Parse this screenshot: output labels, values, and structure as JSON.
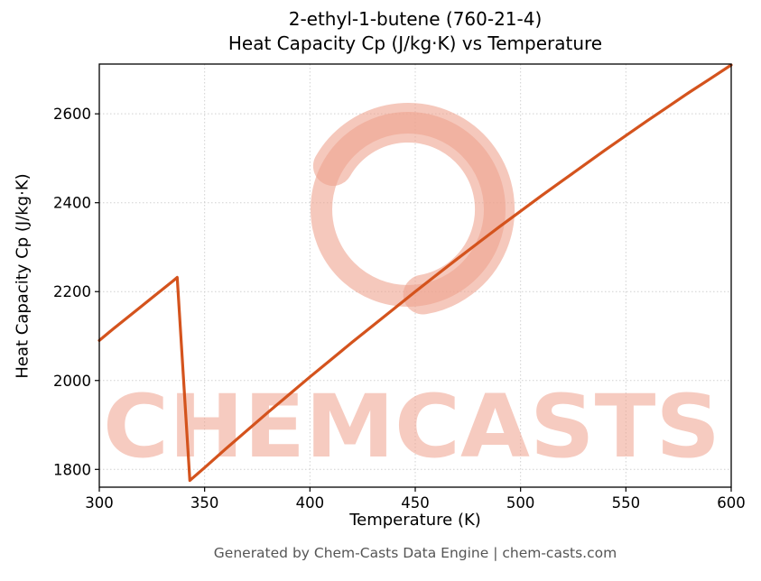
{
  "footer": "Generated by Chem-Casts Data Engine | chem-casts.com",
  "watermark": "CHEMCASTS",
  "colors": {
    "line": "#d4531d",
    "grid": "#d0d0d0",
    "axis": "#000000",
    "tick_label": "#000000",
    "watermark_ring": "#efa38f",
    "watermark_text": "#f0a28e",
    "footer_text": "#555555"
  },
  "chart_data": {
    "type": "line",
    "title_line1": "2-ethyl-1-butene (760-21-4)",
    "title_line2": "Heat Capacity Cp (J/kg·K) vs Temperature",
    "title": "2-ethyl-1-butene (760-21-4) — Heat Capacity Cp (J/kg·K) vs Temperature",
    "xlabel": "Temperature (K)",
    "ylabel": "Heat Capacity Cp (J/kg·K)",
    "xlim": [
      300,
      600
    ],
    "ylim": [
      1760,
      2712
    ],
    "x_ticks": [
      300,
      350,
      400,
      450,
      500,
      550,
      600
    ],
    "y_ticks": [
      1800,
      2000,
      2200,
      2400,
      2600
    ],
    "grid": true,
    "legend": false,
    "series": [
      {
        "name": "Heat Capacity Cp",
        "points": [
          [
            300,
            2090
          ],
          [
            305,
            2110
          ],
          [
            310,
            2129
          ],
          [
            315,
            2148
          ],
          [
            320,
            2167
          ],
          [
            325,
            2186
          ],
          [
            330,
            2205
          ],
          [
            335,
            2224
          ],
          [
            337,
            2232
          ],
          [
            343,
            1775
          ],
          [
            350,
            1804
          ],
          [
            360,
            1846
          ],
          [
            370,
            1887
          ],
          [
            380,
            1928
          ],
          [
            390,
            1968
          ],
          [
            400,
            2008
          ],
          [
            410,
            2047
          ],
          [
            420,
            2086
          ],
          [
            430,
            2124
          ],
          [
            440,
            2162
          ],
          [
            450,
            2200
          ],
          [
            460,
            2237
          ],
          [
            470,
            2274
          ],
          [
            480,
            2310
          ],
          [
            490,
            2346
          ],
          [
            500,
            2381
          ],
          [
            510,
            2416
          ],
          [
            520,
            2450
          ],
          [
            530,
            2484
          ],
          [
            540,
            2518
          ],
          [
            550,
            2551
          ],
          [
            560,
            2584
          ],
          [
            570,
            2616
          ],
          [
            580,
            2648
          ],
          [
            590,
            2679
          ],
          [
            600,
            2710
          ]
        ]
      }
    ]
  }
}
